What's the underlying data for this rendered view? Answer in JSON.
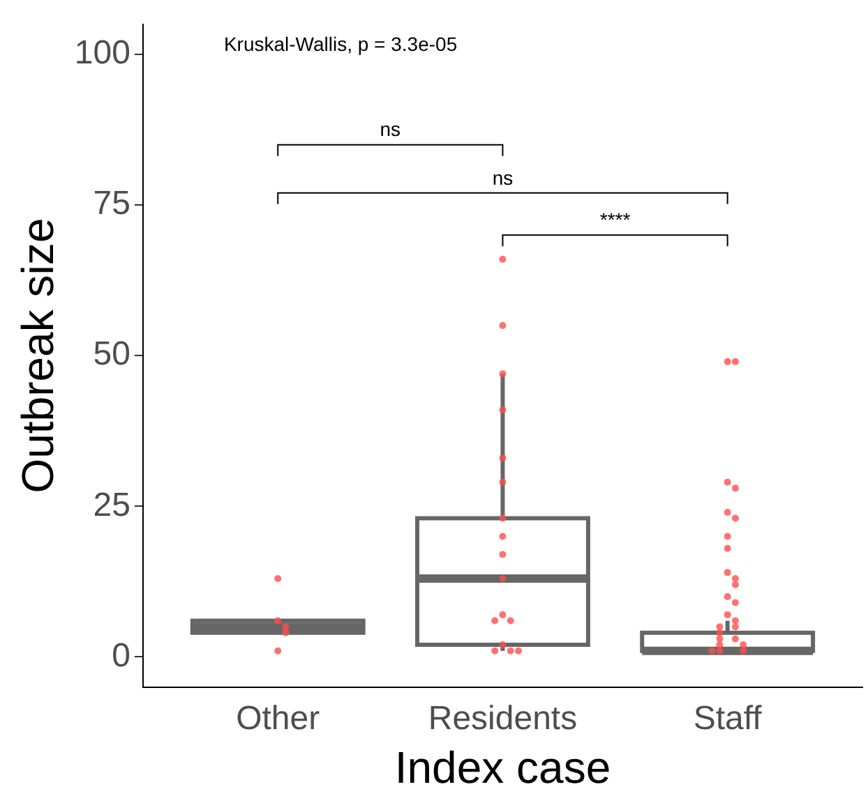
{
  "chart_data": {
    "type": "box",
    "xlabel": "Index case",
    "ylabel": "Outbreak size",
    "categories": [
      "Other",
      "Residents",
      "Staff"
    ],
    "boxes": [
      {
        "low": 4,
        "q1": 4,
        "median": 5,
        "q3": 6,
        "high": 6
      },
      {
        "low": 1,
        "q1": 2,
        "median": 13,
        "q3": 23,
        "high": 47
      },
      {
        "low": 1,
        "q1": 1,
        "median": 1,
        "q3": 4,
        "high": 6
      }
    ],
    "color": "#666666",
    "series": [
      {
        "type": "scatter",
        "color": "#ff4d4d",
        "x": [
          "Other",
          "Other",
          "Other",
          "Other",
          "Other",
          "Residents",
          "Residents",
          "Residents",
          "Residents",
          "Residents",
          "Residents",
          "Residents",
          "Residents",
          "Residents",
          "Residents",
          "Residents",
          "Residents",
          "Residents",
          "Residents",
          "Residents",
          "Residents",
          "Residents",
          "Staff",
          "Staff",
          "Staff",
          "Staff",
          "Staff",
          "Staff",
          "Staff",
          "Staff",
          "Staff",
          "Staff",
          "Staff",
          "Staff",
          "Staff",
          "Staff",
          "Staff",
          "Staff",
          "Staff",
          "Staff",
          "Staff",
          "Staff",
          "Staff",
          "Staff",
          "Staff",
          "Staff",
          "Staff"
        ],
        "values": [
          13,
          6,
          5,
          4,
          1,
          66,
          55,
          47,
          41,
          33,
          29,
          23,
          20,
          17,
          13,
          7,
          6,
          6,
          2,
          1,
          1,
          1,
          49,
          49,
          29,
          28,
          24,
          23,
          20,
          18,
          14,
          13,
          12,
          10,
          9,
          7,
          6,
          5,
          5,
          4,
          3,
          3,
          2,
          2,
          1,
          1,
          1
        ]
      }
    ],
    "ylim": [
      -5,
      105
    ],
    "yticks": [
      0,
      25,
      50,
      75,
      100
    ],
    "grid": false,
    "legend": false,
    "annotations": [
      "Kruskal-Wallis, p = 3.3e-05",
      "ns",
      "ns",
      "****"
    ]
  }
}
